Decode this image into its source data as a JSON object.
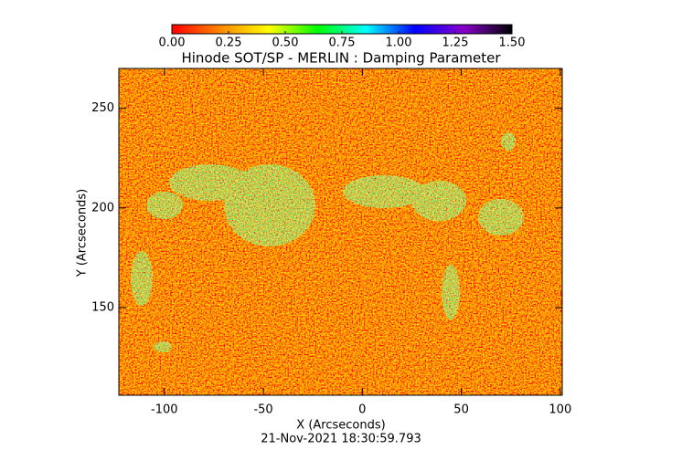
{
  "chart_data": {
    "type": "heatmap",
    "title": "Hinode SOT/SP - MERLIN : Damping Parameter",
    "xlabel": "X (Arcseconds)",
    "ylabel": "Y (Arcseconds)",
    "annotation": "21-Nov-2021 18:30:59.793",
    "xlim": [
      -123,
      101
    ],
    "ylim": [
      106,
      270
    ],
    "xticks": [
      -100,
      -50,
      0,
      50,
      100
    ],
    "yticks": [
      150,
      200,
      250
    ],
    "colorbar": {
      "lim": [
        0,
        1.5
      ],
      "ticks": [
        {
          "value": 0,
          "label": "0.00"
        },
        {
          "value": 0.25,
          "label": "0.25"
        },
        {
          "value": 0.5,
          "label": "0.50"
        },
        {
          "value": 0.75,
          "label": "0.75"
        },
        {
          "value": 1.0,
          "label": "1.00"
        },
        {
          "value": 1.25,
          "label": "1.25"
        },
        {
          "value": 1.5,
          "label": "1.50"
        }
      ],
      "colors": [
        "#ff0000",
        "#ff8800",
        "#ffff00",
        "#00ff00",
        "#00ffff",
        "#0000ff",
        "#8800cc",
        "#000000"
      ]
    }
  }
}
